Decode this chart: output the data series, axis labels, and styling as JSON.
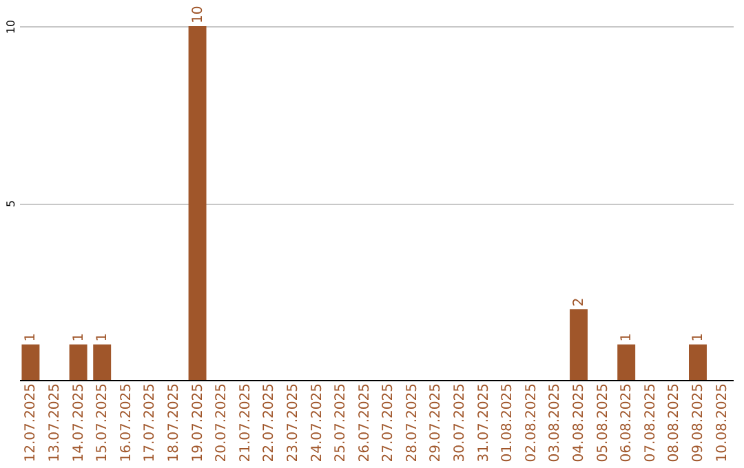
{
  "chart_data": {
    "type": "bar",
    "categories": [
      "12.07.2025",
      "13.07.2025",
      "14.07.2025",
      "15.07.2025",
      "16.07.2025",
      "17.07.2025",
      "18.07.2025",
      "19.07.2025",
      "20.07.2025",
      "21.07.2025",
      "22.07.2025",
      "23.07.2025",
      "24.07.2025",
      "25.07.2025",
      "26.07.2025",
      "27.07.2025",
      "28.07.2025",
      "29.07.2025",
      "30.07.2025",
      "31.07.2025",
      "01.08.2025",
      "02.08.2025",
      "03.08.2025",
      "04.08.2025",
      "05.08.2025",
      "06.08.2025",
      "07.08.2025",
      "08.08.2025",
      "09.08.2025",
      "10.08.2025"
    ],
    "values": [
      1,
      0,
      1,
      1,
      0,
      0,
      0,
      10,
      0,
      0,
      0,
      0,
      0,
      0,
      0,
      0,
      0,
      0,
      0,
      0,
      0,
      0,
      0,
      2,
      0,
      1,
      0,
      0,
      1,
      0
    ],
    "value_labels": [
      "1",
      null,
      "1",
      "1",
      null,
      null,
      null,
      "10",
      null,
      null,
      null,
      null,
      null,
      null,
      null,
      null,
      null,
      null,
      null,
      null,
      null,
      null,
      null,
      "2",
      null,
      "1",
      null,
      null,
      "1",
      null
    ],
    "color": "#a0562a",
    "ylim": [
      0,
      10
    ],
    "yticks": [
      5,
      10
    ],
    "grid": "y"
  }
}
